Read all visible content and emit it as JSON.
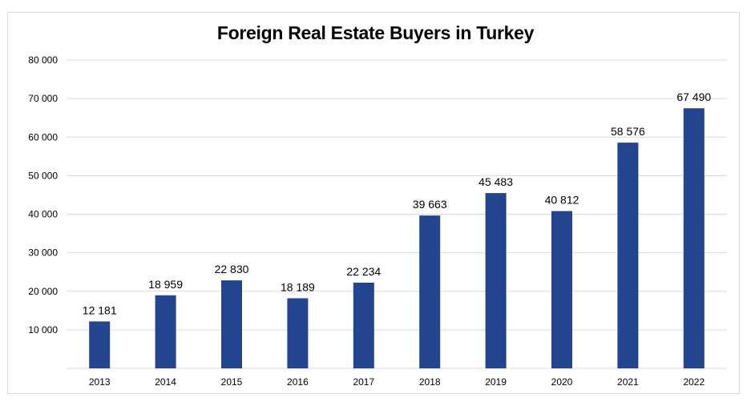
{
  "chart_data": {
    "type": "bar",
    "title": "Foreign Real Estate Buyers in Turkey",
    "categories": [
      "2013",
      "2014",
      "2015",
      "2016",
      "2017",
      "2018",
      "2019",
      "2020",
      "2021",
      "2022"
    ],
    "values": [
      12181,
      18959,
      22830,
      18189,
      22234,
      39663,
      45483,
      40812,
      58576,
      67490
    ],
    "data_labels": [
      "12 181",
      "18 959",
      "22 830",
      "18 189",
      "22 234",
      "39 663",
      "45 483",
      "40 812",
      "58 576",
      "67 490"
    ],
    "y_ticks": [
      10000,
      20000,
      30000,
      40000,
      50000,
      60000,
      70000,
      80000
    ],
    "y_tick_labels": [
      "10 000",
      "20 000",
      "30 000",
      "40 000",
      "50 000",
      "60 000",
      "70 000",
      "80 000"
    ],
    "ylim": [
      0,
      80000
    ],
    "grid": true,
    "legend": "none",
    "bar_color": "#23448f",
    "gridline_color": "#d9d9d9"
  }
}
